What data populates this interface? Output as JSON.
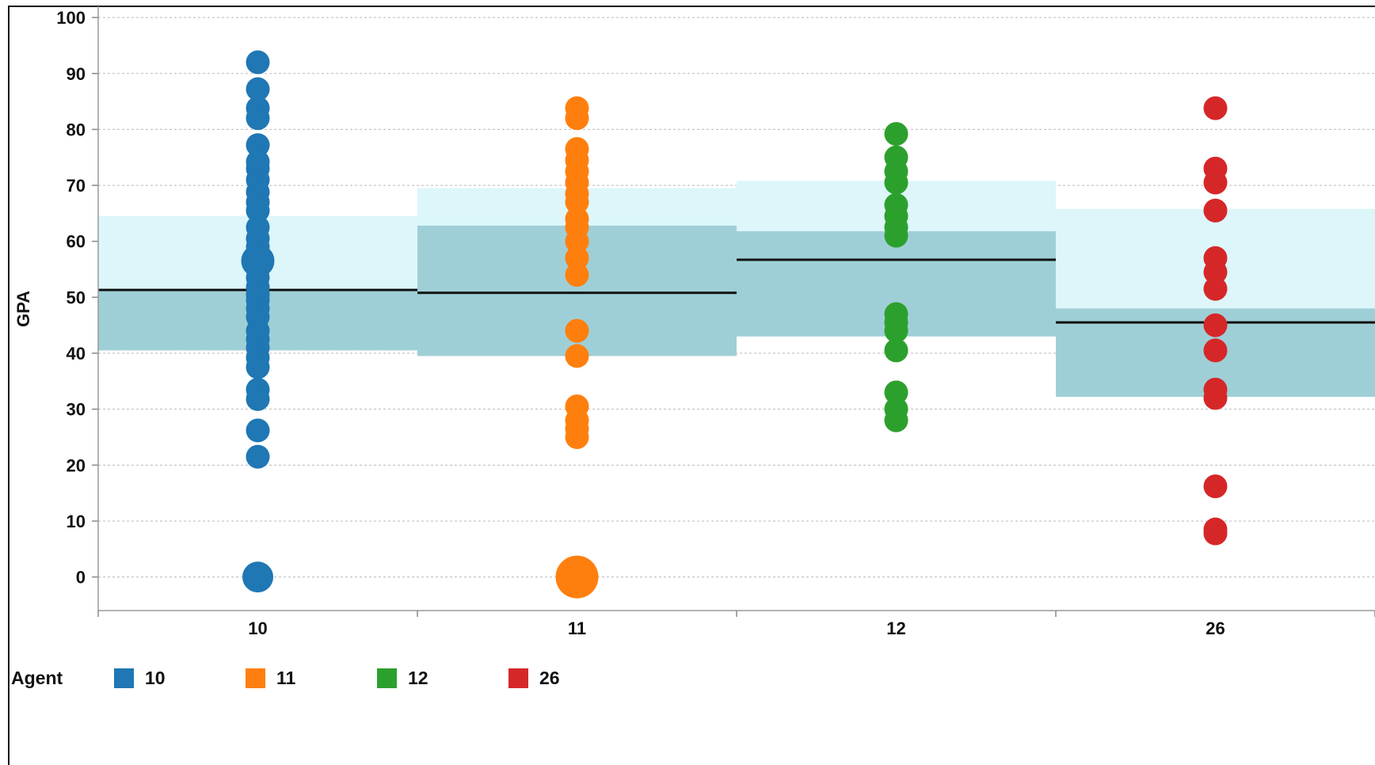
{
  "chart_data": {
    "type": "scatter",
    "ylabel": "GPA",
    "xlabel": "",
    "ylim": [
      -6,
      102
    ],
    "yticks": [
      0,
      10,
      20,
      30,
      40,
      50,
      60,
      70,
      80,
      90,
      100
    ],
    "grid": true,
    "categories": [
      "10",
      "11",
      "12",
      "26"
    ],
    "colors": {
      "10": "#1f77b4",
      "11": "#ff7f0e",
      "12": "#2ca02c",
      "26": "#d62728"
    },
    "band_colors": {
      "outer": "#dcf6fa",
      "inner": "#9fcfd6",
      "mean_line": "#111111"
    },
    "bands": [
      {
        "category": "10",
        "outer": [
          40.5,
          64.5
        ],
        "inner": [
          40.5,
          51.3
        ],
        "mean": 51.3
      },
      {
        "category": "11",
        "outer": [
          39.5,
          69.5
        ],
        "inner": [
          39.5,
          62.8
        ],
        "mean": 50.8
      },
      {
        "category": "12",
        "outer": [
          43,
          70.8
        ],
        "inner": [
          43,
          61.8
        ],
        "mean": 56.7
      },
      {
        "category": "26",
        "outer": [
          32.2,
          65.8
        ],
        "inner": [
          32.2,
          48
        ],
        "mean": 45.5
      }
    ],
    "series": [
      {
        "category": "10",
        "values": [
          92,
          87.2,
          83.8,
          82,
          77.2,
          74.2,
          73,
          71,
          68.8,
          67,
          65.5,
          62.5,
          60.5,
          59,
          57.5,
          56.5,
          55,
          53.5,
          51.8,
          50.5,
          49.5,
          48,
          46.5,
          44,
          42.5,
          41,
          39.2,
          37.5,
          33.5,
          31.8,
          26.2,
          21.5
        ],
        "big": [
          [
            56.5,
            1.4
          ],
          [
            0,
            1.3
          ]
        ]
      },
      {
        "category": "11",
        "values": [
          83.8,
          82,
          76.5,
          74.5,
          72.5,
          70.5,
          68.5,
          67,
          64,
          62.5,
          60,
          57,
          54,
          44,
          39.5,
          30.5,
          28,
          26.5,
          25
        ],
        "big": [
          [
            0,
            1.8
          ]
        ]
      },
      {
        "category": "12",
        "values": [
          79.2,
          75,
          72.5,
          70.5,
          66.5,
          64.5,
          62.5,
          61,
          47,
          45.5,
          44,
          40.5,
          33,
          30,
          28
        ]
      },
      {
        "category": "26",
        "values": [
          83.8,
          73,
          70.5,
          65.5,
          57,
          54.5,
          51.5,
          45,
          40.5,
          33.5,
          32,
          16.2,
          8.5,
          7.8
        ]
      }
    ]
  },
  "legend": {
    "title": "Agent",
    "items": [
      {
        "label": "10",
        "color": "#1f77b4"
      },
      {
        "label": "11",
        "color": "#ff7f0e"
      },
      {
        "label": "12",
        "color": "#2ca02c"
      },
      {
        "label": "26",
        "color": "#d62728"
      }
    ]
  }
}
